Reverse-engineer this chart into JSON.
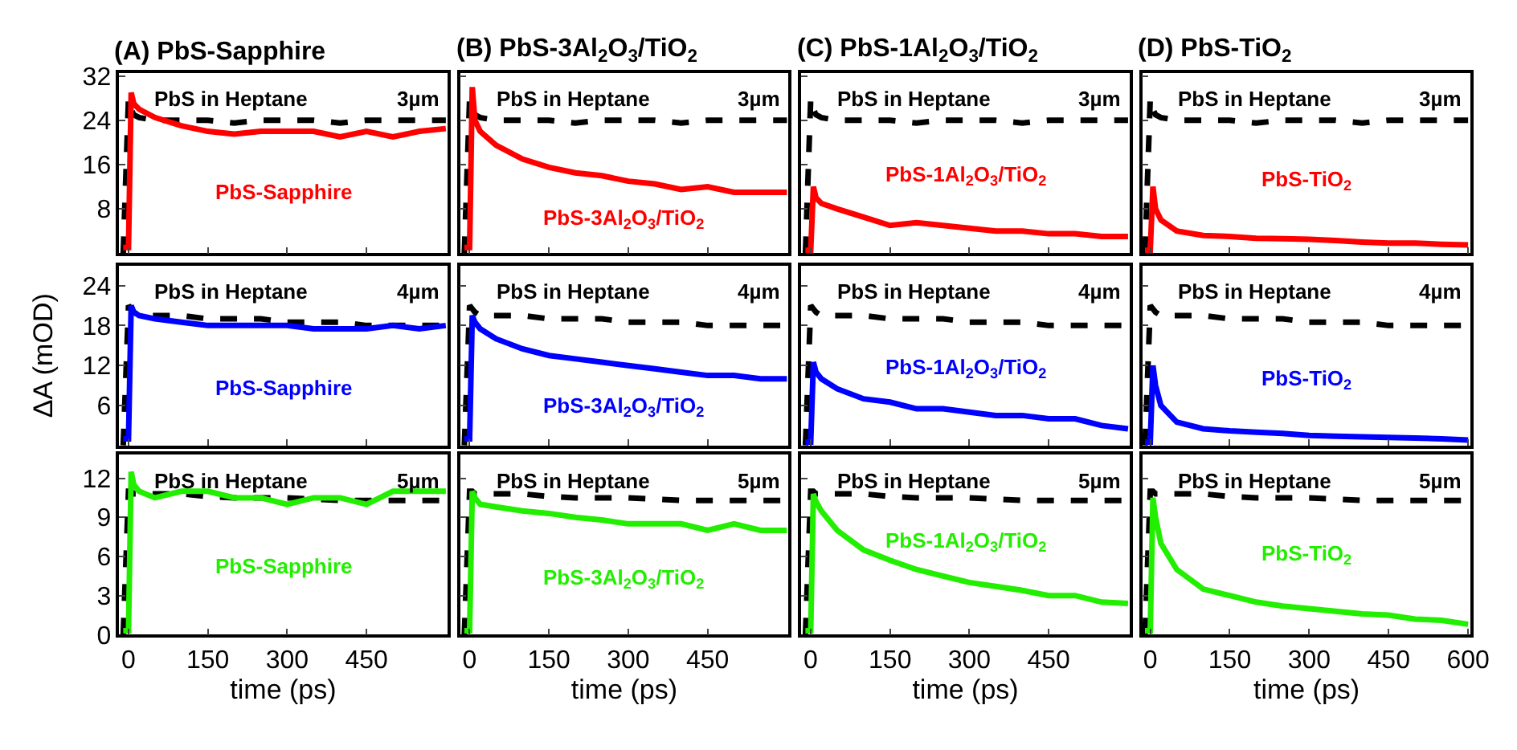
{
  "chart_data": [
    {
      "type": "line",
      "title": "(A) PbS-Sapphire",
      "x": [
        -10,
        0,
        5,
        10,
        20,
        50,
        100,
        150,
        200,
        250,
        300,
        350,
        400,
        450,
        500,
        550,
        600
      ],
      "xlim": [
        -18,
        603
      ],
      "xticks": [
        0,
        150,
        300,
        450
      ],
      "ylim": [
        0,
        32.5
      ],
      "yticks": [
        8,
        16,
        24,
        32
      ],
      "tick_labels": "y",
      "legend": false,
      "grid": false,
      "marker": "none",
      "annotations": [
        "3µm"
      ],
      "series": [
        {
          "name": "PbS in Heptane",
          "color": "#000000",
          "line_style": "dashed",
          "values": [
            0,
            28,
            26,
            25,
            24.5,
            24,
            24,
            24,
            23.5,
            24,
            24,
            24,
            23.5,
            24,
            24,
            24,
            24
          ]
        },
        {
          "name": "PbS-Sapphire",
          "color": "#ff0000",
          "line_style": "solid",
          "values": [
            1,
            1,
            29,
            27,
            26,
            24.5,
            23,
            22,
            21.5,
            22,
            22,
            22,
            21,
            22,
            21,
            22,
            22.5
          ]
        }
      ]
    },
    {
      "type": "line",
      "title": "(B) PbS-3Al$_{2}$O$_{3}$/TiO$_{2}$",
      "x": [
        -10,
        0,
        5,
        10,
        20,
        50,
        100,
        150,
        200,
        250,
        300,
        350,
        400,
        450,
        500,
        550,
        600
      ],
      "xlim": [
        -18,
        603
      ],
      "xticks": [
        0,
        150,
        300,
        450
      ],
      "ylim": [
        0,
        32.5
      ],
      "yticks": [
        8,
        16,
        24,
        32
      ],
      "tick_labels": false,
      "legend": false,
      "grid": false,
      "marker": "none",
      "annotations": [
        "3µm"
      ],
      "series": [
        {
          "name": "PbS in Heptane",
          "color": "#000000",
          "line_style": "dashed",
          "values": [
            0,
            28,
            26,
            25,
            24.5,
            24,
            24,
            24,
            23.5,
            24,
            24,
            24,
            23.5,
            24,
            24,
            24,
            24
          ]
        },
        {
          "name": "PbS-3Al$_{2}$O$_{3}$/TiO$_{2}$",
          "color": "#ff0000",
          "line_style": "solid",
          "values": [
            1,
            1,
            30,
            24,
            22,
            19.5,
            17,
            15.5,
            14.5,
            14,
            13,
            12.5,
            11.5,
            12,
            11,
            11,
            11
          ]
        }
      ]
    },
    {
      "type": "line",
      "title": "(C) PbS-1Al$_{2}$O$_{3}$/TiO$_{2}$",
      "x": [
        -10,
        0,
        5,
        10,
        20,
        50,
        100,
        150,
        200,
        250,
        300,
        350,
        400,
        450,
        500,
        550,
        600
      ],
      "xlim": [
        -18,
        603
      ],
      "xticks": [
        0,
        150,
        300,
        450
      ],
      "ylim": [
        0,
        32.5
      ],
      "yticks": [
        8,
        16,
        24,
        32
      ],
      "tick_labels": false,
      "legend": false,
      "grid": false,
      "marker": "none",
      "annotations": [
        "3µm"
      ],
      "series": [
        {
          "name": "PbS in Heptane",
          "color": "#000000",
          "line_style": "dashed",
          "values": [
            0,
            28,
            26,
            25,
            24.5,
            24,
            24,
            24,
            23.5,
            24,
            24,
            24,
            23.5,
            24,
            24,
            24,
            24
          ]
        },
        {
          "name": "PbS-1Al$_{2}$O$_{3}$/TiO$_{2}$",
          "color": "#ff0000",
          "line_style": "solid",
          "values": [
            0.5,
            0.5,
            12,
            10,
            9,
            8,
            6.5,
            5,
            5.5,
            5,
            4.5,
            4,
            4,
            3.5,
            3.5,
            3,
            3
          ]
        }
      ]
    },
    {
      "type": "line",
      "title": "(D) PbS-TiO$_{2}$",
      "x": [
        -10,
        0,
        5,
        10,
        20,
        50,
        100,
        150,
        200,
        250,
        300,
        350,
        400,
        450,
        500,
        550,
        600
      ],
      "xlim": [
        -15,
        605
      ],
      "xticks": [
        0,
        150,
        300,
        450,
        600
      ],
      "ylim": [
        0,
        32.5
      ],
      "yticks": [
        8,
        16,
        24,
        32
      ],
      "tick_labels": false,
      "legend": false,
      "grid": false,
      "marker": "none",
      "annotations": [
        "3µm"
      ],
      "series": [
        {
          "name": "PbS in Heptane",
          "color": "#000000",
          "line_style": "dashed",
          "values": [
            0,
            28,
            26,
            25,
            24.5,
            24,
            24,
            24,
            23.5,
            24,
            24,
            24,
            23.5,
            24,
            24,
            24,
            24
          ]
        },
        {
          "name": "PbS-TiO$_{2}$",
          "color": "#ff0000",
          "line_style": "solid",
          "values": [
            0.5,
            0.5,
            12,
            8,
            6,
            4,
            3.2,
            3,
            2.7,
            2.6,
            2.5,
            2.3,
            2,
            1.8,
            1.8,
            1.6,
            1.5
          ]
        }
      ]
    },
    {
      "type": "line",
      "ylabel": "ΔA (mOD)",
      "x": [
        -10,
        0,
        5,
        10,
        20,
        50,
        100,
        150,
        200,
        250,
        300,
        350,
        400,
        450,
        500,
        550,
        600
      ],
      "xlim": [
        -18,
        603
      ],
      "xticks": [
        0,
        150,
        300,
        450
      ],
      "ylim": [
        0,
        27
      ],
      "yticks": [
        6,
        12,
        18,
        24
      ],
      "tick_labels": "y",
      "legend": false,
      "grid": false,
      "marker": "none",
      "annotations": [
        "4µm"
      ],
      "series": [
        {
          "name": "PbS in Heptane",
          "color": "#000000",
          "line_style": "dashed",
          "values": [
            0,
            21,
            20.5,
            20,
            19.5,
            19.5,
            19.5,
            19,
            19,
            19,
            18.5,
            18.5,
            18.5,
            18,
            18,
            18,
            18
          ]
        },
        {
          "name": "PbS-Sapphire",
          "color": "#0000ff",
          "line_style": "solid",
          "values": [
            1,
            1,
            21,
            20,
            19.5,
            19,
            18.5,
            18,
            18,
            18,
            18,
            17.5,
            17.5,
            17.5,
            18,
            17.5,
            18
          ]
        }
      ]
    },
    {
      "type": "line",
      "x": [
        -10,
        0,
        5,
        10,
        20,
        50,
        100,
        150,
        200,
        250,
        300,
        350,
        400,
        450,
        500,
        550,
        600
      ],
      "xlim": [
        -18,
        603
      ],
      "xticks": [
        0,
        150,
        300,
        450
      ],
      "ylim": [
        0,
        27
      ],
      "yticks": [
        6,
        12,
        18,
        24
      ],
      "tick_labels": false,
      "legend": false,
      "grid": false,
      "marker": "none",
      "annotations": [
        "4µm"
      ],
      "series": [
        {
          "name": "PbS in Heptane",
          "color": "#000000",
          "line_style": "dashed",
          "values": [
            0,
            21,
            20.5,
            20,
            19.5,
            19.5,
            19.5,
            19,
            19,
            19,
            18.5,
            18.5,
            18.5,
            18,
            18,
            18,
            18
          ]
        },
        {
          "name": "PbS-3Al$_{2}$O$_{3}$/TiO$_{2}$",
          "color": "#0000ff",
          "line_style": "solid",
          "values": [
            1,
            1,
            19.5,
            18.5,
            17.5,
            16,
            14.5,
            13.5,
            13,
            12.5,
            12,
            11.5,
            11,
            10.5,
            10.5,
            10,
            10
          ]
        }
      ]
    },
    {
      "type": "line",
      "x": [
        -10,
        0,
        5,
        10,
        20,
        50,
        100,
        150,
        200,
        250,
        300,
        350,
        400,
        450,
        500,
        550,
        600
      ],
      "xlim": [
        -18,
        603
      ],
      "xticks": [
        0,
        150,
        300,
        450
      ],
      "ylim": [
        0,
        27
      ],
      "yticks": [
        6,
        12,
        18,
        24
      ],
      "tick_labels": false,
      "legend": false,
      "grid": false,
      "marker": "none",
      "annotations": [
        "4µm"
      ],
      "series": [
        {
          "name": "PbS in Heptane",
          "color": "#000000",
          "line_style": "dashed",
          "values": [
            0,
            21,
            20.5,
            20,
            19.5,
            19.5,
            19.5,
            19,
            19,
            19,
            18.5,
            18.5,
            18.5,
            18,
            18,
            18,
            18
          ]
        },
        {
          "name": "PbS-1Al$_{2}$O$_{3}$/TiO$_{2}$",
          "color": "#0000ff",
          "line_style": "solid",
          "values": [
            0.5,
            0.5,
            12.5,
            11,
            10,
            8.5,
            7,
            6.5,
            5.5,
            5.5,
            5,
            4.5,
            4.5,
            4,
            4,
            3,
            2.5
          ]
        }
      ]
    },
    {
      "type": "line",
      "x": [
        -10,
        0,
        5,
        10,
        20,
        50,
        100,
        150,
        200,
        250,
        300,
        350,
        400,
        450,
        500,
        550,
        600
      ],
      "xlim": [
        -15,
        605
      ],
      "xticks": [
        0,
        150,
        300,
        450,
        600
      ],
      "ylim": [
        0,
        27
      ],
      "yticks": [
        6,
        12,
        18,
        24
      ],
      "tick_labels": false,
      "legend": false,
      "grid": false,
      "marker": "none",
      "annotations": [
        "4µm"
      ],
      "series": [
        {
          "name": "PbS in Heptane",
          "color": "#000000",
          "line_style": "dashed",
          "values": [
            0,
            21,
            20.5,
            20,
            19.5,
            19.5,
            19.5,
            19,
            19,
            19,
            18.5,
            18.5,
            18.5,
            18,
            18,
            18,
            18
          ]
        },
        {
          "name": "PbS-TiO$_{2}$",
          "color": "#0000ff",
          "line_style": "solid",
          "values": [
            0.5,
            0.5,
            12,
            9,
            6,
            3.5,
            2.5,
            2.2,
            2,
            1.8,
            1.5,
            1.4,
            1.3,
            1.2,
            1.1,
            1,
            0.8
          ]
        }
      ]
    },
    {
      "type": "line",
      "xlabel": "time (ps)",
      "x": [
        -10,
        0,
        5,
        10,
        20,
        50,
        100,
        150,
        200,
        250,
        300,
        350,
        400,
        450,
        500,
        550,
        600
      ],
      "xlim": [
        -18,
        603
      ],
      "xticks": [
        0,
        150,
        300,
        450
      ],
      "ylim": [
        0,
        13.8
      ],
      "yticks": [
        0,
        3,
        6,
        9,
        12
      ],
      "legend": false,
      "grid": false,
      "marker": "none",
      "annotations": [
        "5µm"
      ],
      "series": [
        {
          "name": "PbS in Heptane",
          "color": "#000000",
          "line_style": "dashed",
          "values": [
            0,
            11,
            11,
            10.8,
            10.8,
            10.8,
            10.8,
            10.6,
            10.5,
            10.5,
            10.5,
            10.4,
            10.3,
            10.3,
            10.3,
            10.3,
            10.3
          ]
        },
        {
          "name": "PbS-Sapphire",
          "color": "#22ee00",
          "line_style": "solid",
          "values": [
            0.3,
            0.3,
            12.5,
            11.5,
            11,
            10.5,
            11,
            11,
            10.5,
            10.5,
            10,
            10.5,
            10.5,
            10,
            11,
            11,
            11
          ]
        }
      ]
    },
    {
      "type": "line",
      "xlabel": "time (ps)",
      "x": [
        -10,
        0,
        5,
        10,
        20,
        50,
        100,
        150,
        200,
        250,
        300,
        350,
        400,
        450,
        500,
        550,
        600
      ],
      "xlim": [
        -18,
        603
      ],
      "xticks": [
        0,
        150,
        300,
        450
      ],
      "ylim": [
        0,
        13.8
      ],
      "yticks": [
        0,
        3,
        6,
        9,
        12
      ],
      "tick_labels": "x",
      "legend": false,
      "grid": false,
      "marker": "none",
      "annotations": [
        "5µm"
      ],
      "series": [
        {
          "name": "PbS in Heptane",
          "color": "#000000",
          "line_style": "dashed",
          "values": [
            0,
            11,
            11,
            10.8,
            10.8,
            10.8,
            10.8,
            10.6,
            10.5,
            10.5,
            10.5,
            10.4,
            10.3,
            10.3,
            10.3,
            10.3,
            10.3
          ]
        },
        {
          "name": "PbS-3Al$_{2}$O$_{3}$/TiO$_{2}$",
          "color": "#22ee00",
          "line_style": "solid",
          "values": [
            0.3,
            0.3,
            11,
            10.5,
            10,
            9.8,
            9.5,
            9.3,
            9,
            8.8,
            8.5,
            8.5,
            8.5,
            8,
            8.5,
            8,
            8
          ]
        }
      ]
    },
    {
      "type": "line",
      "xlabel": "time (ps)",
      "x": [
        -10,
        0,
        5,
        10,
        20,
        50,
        100,
        150,
        200,
        250,
        300,
        350,
        400,
        450,
        500,
        550,
        600
      ],
      "xlim": [
        -18,
        603
      ],
      "xticks": [
        0,
        150,
        300,
        450
      ],
      "ylim": [
        0,
        13.8
      ],
      "yticks": [
        0,
        3,
        6,
        9,
        12
      ],
      "tick_labels": "x",
      "legend": false,
      "grid": false,
      "marker": "none",
      "annotations": [
        "5µm"
      ],
      "series": [
        {
          "name": "PbS in Heptane",
          "color": "#000000",
          "line_style": "dashed",
          "values": [
            0,
            11,
            11,
            10.8,
            10.8,
            10.8,
            10.8,
            10.6,
            10.5,
            10.5,
            10.5,
            10.4,
            10.3,
            10.3,
            10.3,
            10.3,
            10.3
          ]
        },
        {
          "name": "PbS-1Al$_{2}$O$_{3}$/TiO$_{2}$",
          "color": "#22ee00",
          "line_style": "solid",
          "values": [
            0.3,
            0.3,
            10.8,
            10.2,
            9.5,
            8,
            6.5,
            5.7,
            5,
            4.5,
            4,
            3.7,
            3.4,
            3,
            3,
            2.5,
            2.4
          ]
        }
      ]
    },
    {
      "type": "line",
      "xlabel": "time (ps)",
      "x": [
        -10,
        0,
        5,
        10,
        20,
        50,
        100,
        150,
        200,
        250,
        300,
        350,
        400,
        450,
        500,
        550,
        600
      ],
      "xlim": [
        -15,
        605
      ],
      "xticks": [
        0,
        150,
        300,
        450,
        600
      ],
      "ylim": [
        0,
        13.8
      ],
      "yticks": [
        0,
        3,
        6,
        9,
        12
      ],
      "tick_labels": "x",
      "legend": false,
      "grid": false,
      "marker": "none",
      "annotations": [
        "5µm"
      ],
      "series": [
        {
          "name": "PbS in Heptane",
          "color": "#000000",
          "line_style": "dashed",
          "values": [
            0,
            11,
            11,
            10.8,
            10.8,
            10.8,
            10.8,
            10.6,
            10.5,
            10.5,
            10.5,
            10.4,
            10.3,
            10.3,
            10.3,
            10.3,
            10.3
          ]
        },
        {
          "name": "PbS-TiO$_{2}$",
          "color": "#22ee00",
          "line_style": "solid",
          "values": [
            0.3,
            0.3,
            10.5,
            9,
            7,
            5,
            3.5,
            3,
            2.5,
            2.2,
            2,
            1.8,
            1.6,
            1.5,
            1.2,
            1.1,
            0.8
          ]
        }
      ]
    }
  ]
}
